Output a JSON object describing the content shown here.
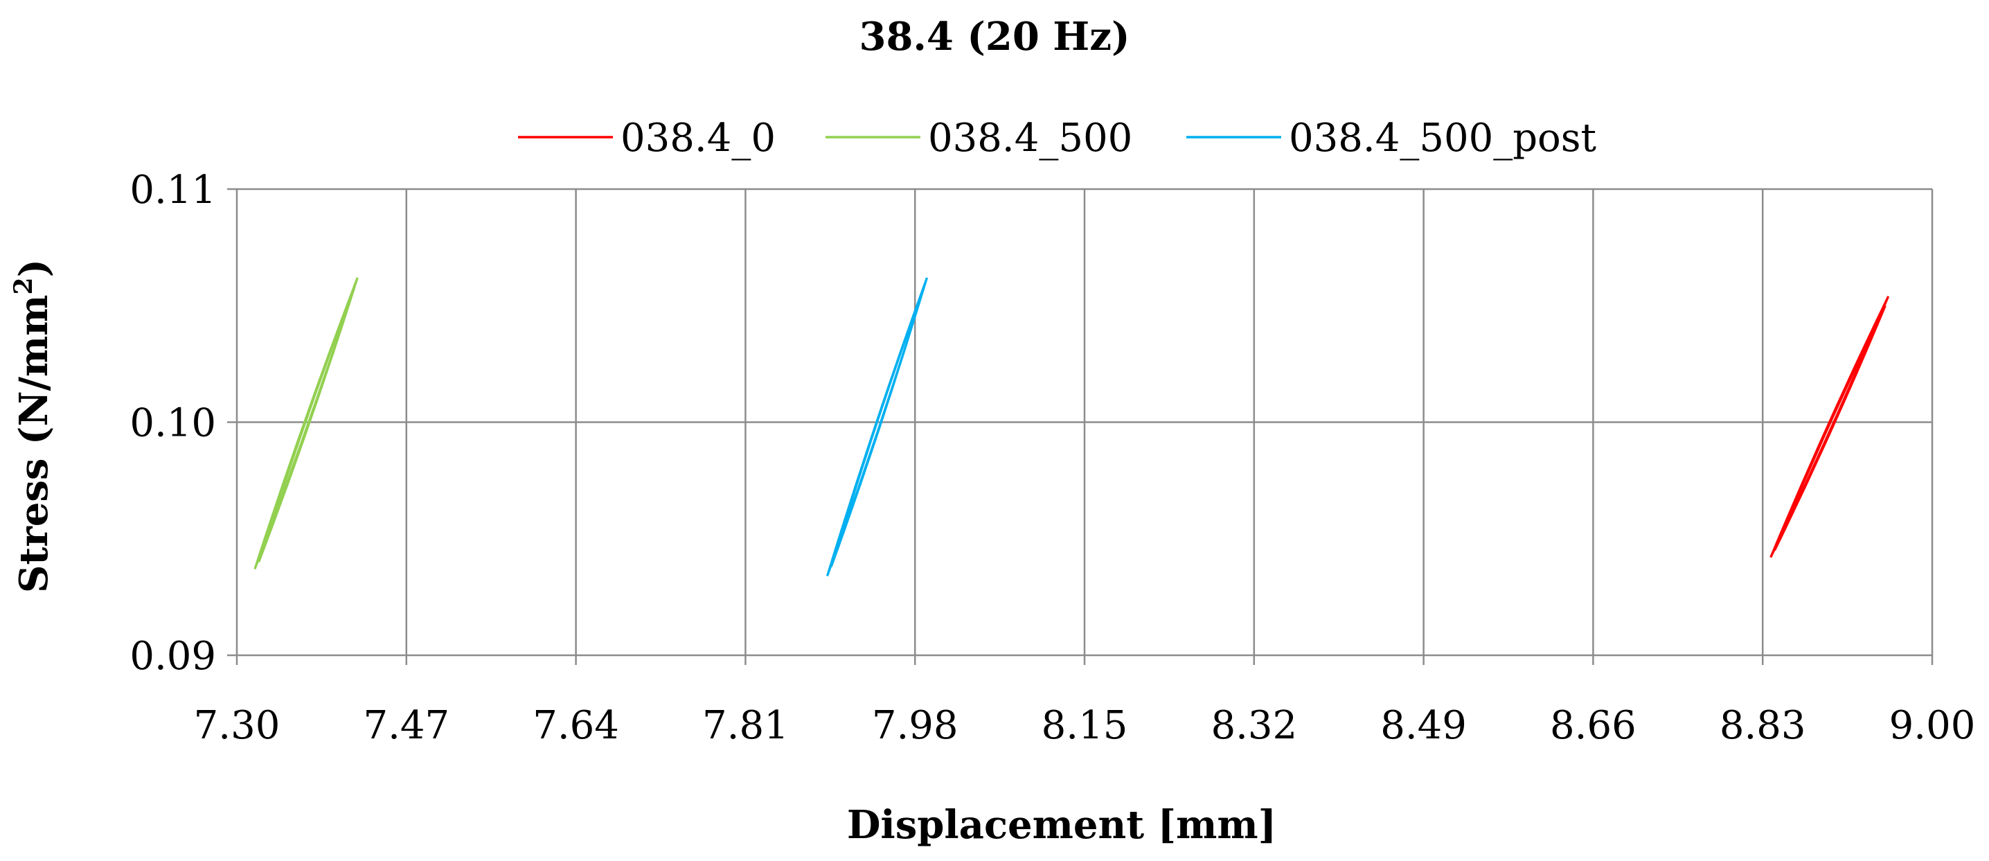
{
  "chart_data": {
    "type": "line",
    "title": "38.4 (20 Hz)",
    "xlabel": "Displacement [mm]",
    "ylabel_main": "Stress (N/mm",
    "ylabel_sup": "2",
    "ylabel_close": ")",
    "xlim": [
      7.3,
      9.0
    ],
    "ylim": [
      0.09,
      0.11
    ],
    "x_ticks": [
      "7.30",
      "7.47",
      "7.64",
      "7.81",
      "7.98",
      "8.15",
      "8.32",
      "8.49",
      "8.66",
      "8.83",
      "9.00"
    ],
    "y_ticks": [
      "0.09",
      "0.10",
      "0.11"
    ],
    "grid": true,
    "legend_position": "top",
    "series": [
      {
        "name": "038.4_0",
        "color": "#ff0000",
        "loops": [
          {
            "x1": 8.838,
            "y1": 0.0942,
            "x2": 8.956,
            "y2": 0.1054,
            "w": 0.004
          },
          {
            "x1": 8.842,
            "y1": 0.0945,
            "x2": 8.953,
            "y2": 0.105,
            "w": 0.004
          }
        ]
      },
      {
        "name": "038.4_500",
        "color": "#92d050",
        "loops": [
          {
            "x1": 7.318,
            "y1": 0.0937,
            "x2": 7.421,
            "y2": 0.1062,
            "w": 0.004
          },
          {
            "x1": 7.322,
            "y1": 0.094,
            "x2": 7.418,
            "y2": 0.1058,
            "w": 0.004
          }
        ]
      },
      {
        "name": "038.4_500_post",
        "color": "#00b0f0",
        "loops": [
          {
            "x1": 7.892,
            "y1": 0.0934,
            "x2": 7.992,
            "y2": 0.1062,
            "w": 0.004
          },
          {
            "x1": 7.896,
            "y1": 0.0938,
            "x2": 7.989,
            "y2": 0.1058,
            "w": 0.004
          }
        ]
      }
    ]
  }
}
